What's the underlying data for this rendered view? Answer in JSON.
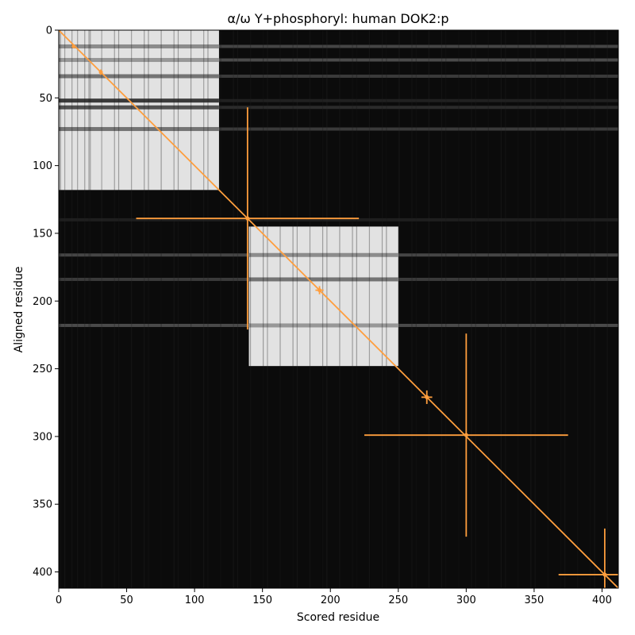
{
  "chart_data": {
    "type": "heatmap",
    "title": "α/ω Y+phosphoryl: human DOK2:p",
    "xlabel": "Scored residue",
    "ylabel": "Aligned residue",
    "xlim": [
      0,
      412
    ],
    "ylim": [
      412,
      0
    ],
    "y_inverted": true,
    "x_ticks": [
      0,
      50,
      100,
      150,
      200,
      250,
      300,
      350,
      400
    ],
    "y_ticks": [
      0,
      50,
      100,
      150,
      200,
      250,
      300,
      350,
      400
    ],
    "colormap": "greyscale",
    "diagonal_color": "#ff9e3d",
    "high_similarity_blocks": [
      {
        "x_range": [
          0,
          118
        ],
        "y_range": [
          0,
          118
        ],
        "level": 0.92
      },
      {
        "x_range": [
          140,
          250
        ],
        "y_range": [
          145,
          248
        ],
        "level": 0.92
      }
    ],
    "horizontal_bands": [
      {
        "y": 12,
        "level": 0.55
      },
      {
        "y": 22,
        "level": 0.6
      },
      {
        "y": 34,
        "level": 0.45
      },
      {
        "y": 52,
        "level": 0.2
      },
      {
        "y": 57,
        "level": 0.3
      },
      {
        "y": 73,
        "level": 0.45
      },
      {
        "y": 140,
        "level": 0.18
      },
      {
        "y": 166,
        "level": 0.55
      },
      {
        "y": 184,
        "level": 0.45
      },
      {
        "y": 218,
        "level": 0.6
      }
    ],
    "diagonal_line": {
      "from": [
        0,
        0
      ],
      "to": [
        412,
        412
      ]
    },
    "markers": [
      {
        "x": 11,
        "y": 12,
        "x_err": 0,
        "y_err": 0
      },
      {
        "x": 31,
        "y": 31,
        "x_err": 1,
        "y_err": 2
      },
      {
        "x": 139,
        "y": 139,
        "x_err": 82,
        "y_err": 82
      },
      {
        "x": 192,
        "y": 192,
        "x_err": 3,
        "y_err": 3
      },
      {
        "x": 271,
        "y": 271,
        "x_err": 4,
        "y_err": 5
      },
      {
        "x": 300,
        "y": 299,
        "x_err": 75,
        "y_err": 75
      },
      {
        "x": 402,
        "y": 402,
        "x_err": 34,
        "y_err": 34
      }
    ]
  }
}
